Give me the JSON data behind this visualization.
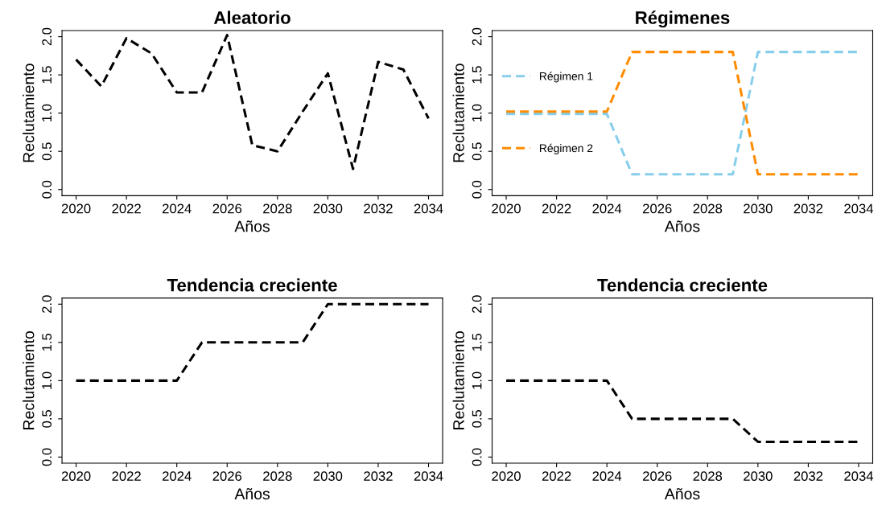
{
  "chart_data": [
    {
      "type": "line",
      "title": "Aleatorio",
      "xlabel": "Años",
      "ylabel": "Reclutamiento",
      "x": [
        2020,
        2021,
        2022,
        2023,
        2024,
        2025,
        2026,
        2027,
        2028,
        2029,
        2030,
        2031,
        2032,
        2033,
        2034
      ],
      "line_style": "dashed",
      "xlim": [
        2019.44,
        2034.56
      ],
      "ylim": [
        -0.08,
        2.08
      ],
      "xticks": [
        2020,
        2022,
        2024,
        2026,
        2028,
        2030,
        2032,
        2034
      ],
      "yticks": [
        {
          "value": 0,
          "label": "0.0"
        },
        {
          "value": 0.5,
          "label": "0.5"
        },
        {
          "value": 1,
          "label": "1.0"
        },
        {
          "value": 1.5,
          "label": "1.5"
        },
        {
          "value": 2,
          "label": "2.0"
        }
      ],
      "series": [
        {
          "color": "#000000",
          "values": [
            1.7,
            1.35,
            1.98,
            1.78,
            1.27,
            1.27,
            2.02,
            0.58,
            0.5,
            1.02,
            1.52,
            0.27,
            1.67,
            1.57,
            0.93
          ]
        }
      ]
    },
    {
      "type": "line",
      "title": "Régimenes",
      "xlabel": "Años",
      "ylabel": "Reclutamiento",
      "x": [
        2020,
        2021,
        2022,
        2023,
        2024,
        2025,
        2026,
        2027,
        2028,
        2029,
        2030,
        2031,
        2032,
        2033,
        2034
      ],
      "line_style": "dashed",
      "legend": "left",
      "xlim": [
        2019.44,
        2034.56
      ],
      "ylim": [
        -0.08,
        2.08
      ],
      "xticks": [
        2020,
        2022,
        2024,
        2026,
        2028,
        2030,
        2032,
        2034
      ],
      "yticks": [
        {
          "value": 0,
          "label": "0.0"
        },
        {
          "value": 0.5,
          "label": "0.5"
        },
        {
          "value": 1,
          "label": "1.0"
        },
        {
          "value": 1.5,
          "label": "1.5"
        },
        {
          "value": 2,
          "label": "2.0"
        }
      ],
      "series": [
        {
          "name": "Régimen 1",
          "color": "#87ceeb",
          "values": [
            0.99,
            0.99,
            0.99,
            0.99,
            0.99,
            0.2,
            0.2,
            0.2,
            0.2,
            0.2,
            1.8,
            1.8,
            1.8,
            1.8,
            1.8
          ]
        },
        {
          "name": "Régimen 2",
          "color": "#ff8c00",
          "values": [
            1.02,
            1.02,
            1.02,
            1.02,
            1.02,
            1.8,
            1.8,
            1.8,
            1.8,
            1.8,
            0.2,
            0.2,
            0.2,
            0.2,
            0.2
          ]
        }
      ]
    },
    {
      "type": "line",
      "title": "Tendencia creciente",
      "xlabel": "Años",
      "ylabel": "Reclutamiento",
      "x": [
        2020,
        2021,
        2022,
        2023,
        2024,
        2025,
        2026,
        2027,
        2028,
        2029,
        2030,
        2031,
        2032,
        2033,
        2034
      ],
      "line_style": "dashed",
      "xlim": [
        2019.44,
        2034.56
      ],
      "ylim": [
        -0.08,
        2.08
      ],
      "xticks": [
        2020,
        2022,
        2024,
        2026,
        2028,
        2030,
        2032,
        2034
      ],
      "yticks": [
        {
          "value": 0,
          "label": "0.0"
        },
        {
          "value": 0.5,
          "label": "0.5"
        },
        {
          "value": 1,
          "label": "1.0"
        },
        {
          "value": 1.5,
          "label": "1.5"
        },
        {
          "value": 2,
          "label": "2.0"
        }
      ],
      "series": [
        {
          "color": "#000000",
          "values": [
            1,
            1,
            1,
            1,
            1,
            1.5,
            1.5,
            1.5,
            1.5,
            1.5,
            2,
            2,
            2,
            2,
            2
          ]
        }
      ]
    },
    {
      "type": "line",
      "title": "Tendencia creciente",
      "xlabel": "Años",
      "ylabel": "Reclutamiento",
      "x": [
        2020,
        2021,
        2022,
        2023,
        2024,
        2025,
        2026,
        2027,
        2028,
        2029,
        2030,
        2031,
        2032,
        2033,
        2034
      ],
      "line_style": "dashed",
      "xlim": [
        2019.44,
        2034.56
      ],
      "ylim": [
        -0.08,
        2.08
      ],
      "xticks": [
        2020,
        2022,
        2024,
        2026,
        2028,
        2030,
        2032,
        2034
      ],
      "yticks": [
        {
          "value": 0,
          "label": "0.0"
        },
        {
          "value": 0.5,
          "label": "0.5"
        },
        {
          "value": 1,
          "label": "1.0"
        },
        {
          "value": 1.5,
          "label": "1.5"
        },
        {
          "value": 2,
          "label": "2.0"
        }
      ],
      "series": [
        {
          "color": "#000000",
          "values": [
            1,
            1,
            1,
            1,
            1,
            0.5,
            0.5,
            0.5,
            0.5,
            0.5,
            0.2,
            0.2,
            0.2,
            0.2,
            0.2
          ]
        }
      ]
    }
  ]
}
